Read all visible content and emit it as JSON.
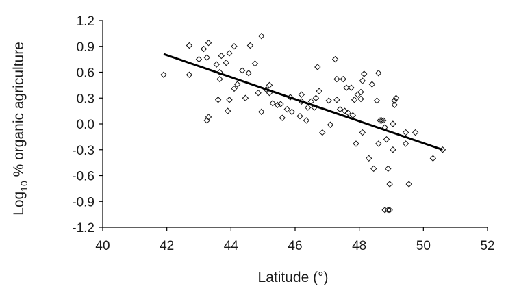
{
  "chart_data": {
    "type": "scatter",
    "title": "",
    "xlabel": "Latitude (°)",
    "ylabel_main": "Log",
    "ylabel_sub": "10",
    "ylabel_rest": "  % organic agriculture",
    "xlim": [
      40,
      52
    ],
    "ylim": [
      -1.2,
      1.2
    ],
    "x_ticks": [
      40,
      42,
      44,
      46,
      48,
      50,
      52
    ],
    "y_ticks": [
      1.2,
      0.9,
      0.6,
      0.3,
      0.0,
      -0.3,
      -0.6,
      -0.9,
      -1.2
    ],
    "x_tick_labels": [
      "40",
      "42",
      "44",
      "46",
      "48",
      "50",
      "52"
    ],
    "y_tick_labels": [
      "1.2",
      "0.9",
      "0.6",
      "0.3",
      "0.0",
      "-0.3",
      "-0.6",
      "-0.9",
      "-1.2"
    ],
    "grid": false,
    "marker": "open-diamond",
    "colors": {
      "points": "#111111",
      "trendline": "#000000",
      "axes": "#000000"
    },
    "trendline": {
      "x": [
        41.9,
        50.6
      ],
      "y": [
        0.81,
        -0.3
      ]
    },
    "series": [
      {
        "points": [
          [
            41.9,
            0.57
          ],
          [
            42.7,
            0.91
          ],
          [
            42.7,
            0.57
          ],
          [
            43.0,
            0.75
          ],
          [
            43.15,
            0.87
          ],
          [
            43.25,
            0.77
          ],
          [
            43.3,
            0.94
          ],
          [
            43.25,
            0.04
          ],
          [
            43.3,
            0.08
          ],
          [
            43.55,
            0.69
          ],
          [
            43.65,
            0.6
          ],
          [
            43.65,
            0.52
          ],
          [
            43.6,
            0.28
          ],
          [
            43.7,
            0.79
          ],
          [
            43.85,
            0.71
          ],
          [
            43.95,
            0.82
          ],
          [
            43.9,
            0.15
          ],
          [
            43.95,
            0.28
          ],
          [
            44.1,
            0.9
          ],
          [
            44.1,
            0.41
          ],
          [
            44.2,
            0.46
          ],
          [
            44.35,
            0.62
          ],
          [
            44.45,
            0.3
          ],
          [
            44.55,
            0.59
          ],
          [
            44.6,
            0.91
          ],
          [
            44.75,
            0.7
          ],
          [
            44.85,
            0.36
          ],
          [
            44.95,
            1.02
          ],
          [
            44.95,
            0.14
          ],
          [
            45.1,
            0.4
          ],
          [
            45.2,
            0.45
          ],
          [
            45.2,
            0.36
          ],
          [
            45.3,
            0.24
          ],
          [
            45.45,
            0.22
          ],
          [
            45.55,
            0.23
          ],
          [
            45.6,
            0.07
          ],
          [
            45.75,
            0.17
          ],
          [
            45.85,
            0.31
          ],
          [
            45.9,
            0.14
          ],
          [
            46.15,
            0.09
          ],
          [
            46.2,
            0.34
          ],
          [
            46.2,
            0.26
          ],
          [
            46.35,
            0.04
          ],
          [
            46.4,
            0.19
          ],
          [
            46.5,
            0.26
          ],
          [
            46.6,
            0.19
          ],
          [
            46.65,
            0.3
          ],
          [
            46.7,
            0.66
          ],
          [
            46.75,
            0.38
          ],
          [
            46.85,
            -0.1
          ],
          [
            47.05,
            0.27
          ],
          [
            47.1,
            -0.01
          ],
          [
            47.25,
            0.75
          ],
          [
            47.3,
            0.52
          ],
          [
            47.3,
            0.28
          ],
          [
            47.4,
            0.17
          ],
          [
            47.5,
            0.52
          ],
          [
            47.55,
            0.15
          ],
          [
            47.6,
            0.42
          ],
          [
            47.65,
            0.13
          ],
          [
            47.75,
            0.42
          ],
          [
            47.8,
            0.1
          ],
          [
            47.85,
            0.28
          ],
          [
            47.9,
            -0.23
          ],
          [
            47.95,
            0.34
          ],
          [
            48.05,
            0.29
          ],
          [
            48.05,
            0.37
          ],
          [
            48.1,
            0.5
          ],
          [
            48.1,
            -0.1
          ],
          [
            48.15,
            0.58
          ],
          [
            48.3,
            -0.4
          ],
          [
            48.4,
            0.46
          ],
          [
            48.45,
            -0.52
          ],
          [
            48.55,
            0.27
          ],
          [
            48.6,
            -0.23
          ],
          [
            48.6,
            0.59
          ],
          [
            48.65,
            0.04
          ],
          [
            48.7,
            0.04
          ],
          [
            48.75,
            0.04
          ],
          [
            48.8,
            -0.04
          ],
          [
            48.8,
            -1.0
          ],
          [
            48.85,
            -0.18
          ],
          [
            48.9,
            -1.0
          ],
          [
            48.9,
            -0.52
          ],
          [
            48.95,
            -1.0
          ],
          [
            48.95,
            -0.7
          ],
          [
            49.05,
            -0.3
          ],
          [
            49.05,
            0.0
          ],
          [
            49.1,
            0.22
          ],
          [
            49.1,
            0.27
          ],
          [
            49.15,
            0.3
          ],
          [
            49.45,
            -0.1
          ],
          [
            49.45,
            -0.23
          ],
          [
            49.55,
            -0.7
          ],
          [
            49.75,
            -0.1
          ],
          [
            50.3,
            -0.4
          ],
          [
            50.6,
            -0.3
          ]
        ]
      }
    ]
  }
}
